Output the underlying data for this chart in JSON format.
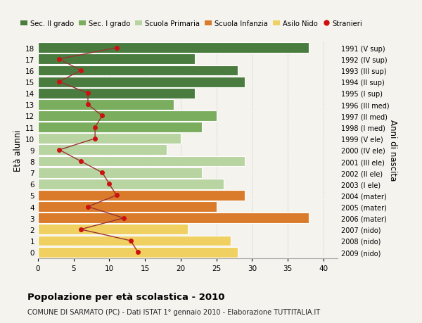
{
  "ages": [
    18,
    17,
    16,
    15,
    14,
    13,
    12,
    11,
    10,
    9,
    8,
    7,
    6,
    5,
    4,
    3,
    2,
    1,
    0
  ],
  "years": [
    "1991 (V sup)",
    "1992 (IV sup)",
    "1993 (III sup)",
    "1994 (II sup)",
    "1995 (I sup)",
    "1996 (III med)",
    "1997 (II med)",
    "1998 (I med)",
    "1999 (V ele)",
    "2000 (IV ele)",
    "2001 (III ele)",
    "2002 (II ele)",
    "2003 (I ele)",
    "2004 (mater)",
    "2005 (mater)",
    "2006 (mater)",
    "2007 (nido)",
    "2008 (nido)",
    "2009 (nido)"
  ],
  "bar_values": [
    38,
    22,
    28,
    29,
    22,
    19,
    25,
    23,
    20,
    18,
    29,
    23,
    26,
    29,
    25,
    38,
    21,
    27,
    28
  ],
  "bar_colors": [
    "#4a7c3f",
    "#4a7c3f",
    "#4a7c3f",
    "#4a7c3f",
    "#4a7c3f",
    "#7aad5e",
    "#7aad5e",
    "#7aad5e",
    "#b8d4a0",
    "#b8d4a0",
    "#b8d4a0",
    "#b8d4a0",
    "#b8d4a0",
    "#d97b2b",
    "#d97b2b",
    "#d97b2b",
    "#f0d060",
    "#f0d060",
    "#f0d060"
  ],
  "stranieri_values": [
    11,
    3,
    6,
    3,
    7,
    7,
    9,
    8,
    8,
    3,
    6,
    9,
    10,
    11,
    7,
    12,
    6,
    13,
    14
  ],
  "legend_labels": [
    "Sec. II grado",
    "Sec. I grado",
    "Scuola Primaria",
    "Scuola Infanzia",
    "Asilo Nido",
    "Stranieri"
  ],
  "legend_colors": [
    "#4a7c3f",
    "#7aad5e",
    "#b8d4a0",
    "#d97b2b",
    "#f0d060",
    "#cc1111"
  ],
  "ylabel": "Età alunni",
  "ylabel_right": "Anni di nascita",
  "title": "Popolazione per età scolastica - 2010",
  "subtitle": "COMUNE DI SARMATO (PC) - Dati ISTAT 1° gennaio 2010 - Elaborazione TUTTITALIA.IT",
  "xlim": [
    0,
    42
  ],
  "xticks": [
    0,
    5,
    10,
    15,
    20,
    25,
    30,
    35,
    40
  ],
  "bar_height": 0.92,
  "stranieri_color": "#cc1111",
  "stranieri_line_color": "#993333",
  "bg_color": "#f5f3ee",
  "grid_color": "#cccccc"
}
